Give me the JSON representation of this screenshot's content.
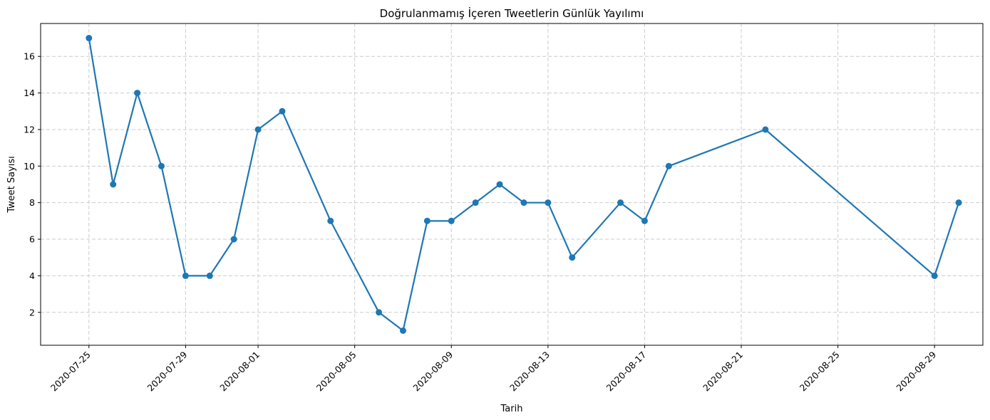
{
  "chart_data": {
    "type": "line",
    "title": "Doğrulanmamış İçeren Tweetlerin Günlük Yayılımı",
    "xlabel": "Tarih",
    "ylabel": "Tweet Sayısı",
    "x_tick_labels": [
      "2020-07-25",
      "2020-07-29",
      "2020-08-01",
      "2020-08-05",
      "2020-08-09",
      "2020-08-13",
      "2020-08-17",
      "2020-08-21",
      "2020-08-25",
      "2020-08-29"
    ],
    "y_tick_labels": [
      "2",
      "4",
      "6",
      "8",
      "10",
      "12",
      "14",
      "16"
    ],
    "xlim": [
      "2020-07-23",
      "2020-08-31"
    ],
    "ylim": [
      0.2,
      17.8
    ],
    "grid": true,
    "color": "#1f77b4",
    "series": [
      {
        "x": [
          "2020-07-25",
          "2020-07-26",
          "2020-07-27",
          "2020-07-28",
          "2020-07-29",
          "2020-07-30",
          "2020-07-31",
          "2020-08-01",
          "2020-08-02",
          "2020-08-04",
          "2020-08-06",
          "2020-08-07",
          "2020-08-08",
          "2020-08-09",
          "2020-08-10",
          "2020-08-11",
          "2020-08-12",
          "2020-08-13",
          "2020-08-14",
          "2020-08-16",
          "2020-08-17",
          "2020-08-18",
          "2020-08-22",
          "2020-08-29",
          "2020-08-30"
        ],
        "values": [
          17,
          9,
          14,
          10,
          4,
          4,
          6,
          12,
          13,
          7,
          2,
          1,
          7,
          7,
          8,
          9,
          8,
          8,
          5,
          8,
          7,
          10,
          12,
          4,
          8
        ]
      }
    ]
  }
}
